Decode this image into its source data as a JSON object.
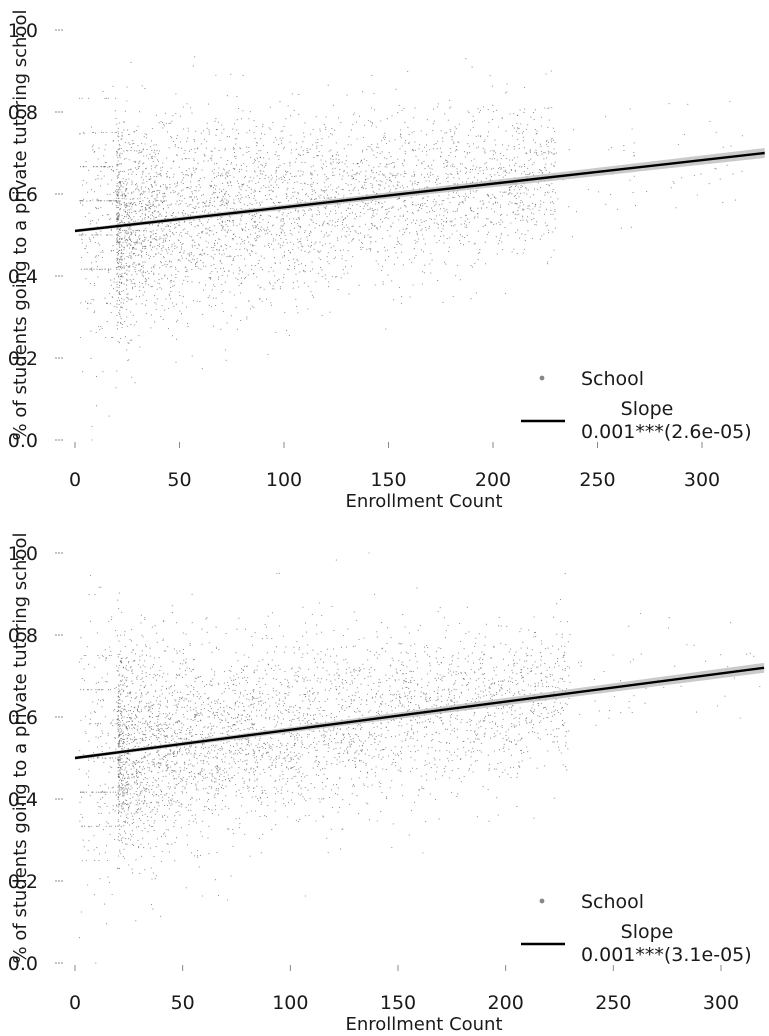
{
  "chart_data": [
    {
      "type": "scatter",
      "xlabel": "Enrollment Count",
      "ylabel": "% of students going to a private tutoring school",
      "xlim": [
        0,
        330
      ],
      "ylim": [
        0,
        1.0
      ],
      "x_ticks": [
        "0",
        "50",
        "100",
        "150",
        "200",
        "250",
        "300"
      ],
      "y_ticks": [
        "0.0",
        "0.2",
        "0.4",
        "0.6",
        "0.8",
        "1.0"
      ],
      "grid": false,
      "legend_position": "bottom-right",
      "legend": {
        "points_label": "School",
        "line_label": "Slope",
        "line_value": "0.001***(2.6e-05)"
      },
      "series": [
        {
          "name": "School",
          "kind": "points",
          "color": "#555555",
          "n_points_approx": 9000
        },
        {
          "name": "Slope",
          "kind": "fitted-line",
          "color": "#000000",
          "ci_color": "#bdbdbd",
          "line": {
            "x": [
              0,
              330
            ],
            "y": [
              0.51,
              0.7
            ]
          }
        }
      ]
    },
    {
      "type": "scatter",
      "xlabel": "Enrollment Count",
      "ylabel": "% of students going to a private tutoring school",
      "xlim": [
        0,
        320
      ],
      "ylim": [
        0,
        1.0
      ],
      "x_ticks": [
        "0",
        "50",
        "100",
        "150",
        "200",
        "250",
        "300"
      ],
      "y_ticks": [
        "0.0",
        "0.2",
        "0.4",
        "0.6",
        "0.8",
        "1.0"
      ],
      "grid": false,
      "legend_position": "bottom-right",
      "legend": {
        "points_label": "School",
        "line_label": "Slope",
        "line_value": "0.001***(3.1e-05)"
      },
      "series": [
        {
          "name": "School",
          "kind": "points",
          "color": "#555555",
          "n_points_approx": 9000
        },
        {
          "name": "Slope",
          "kind": "fitted-line",
          "color": "#000000",
          "ci_color": "#bdbdbd",
          "line": {
            "x": [
              0,
              320
            ],
            "y": [
              0.5,
              0.72
            ]
          }
        }
      ]
    }
  ]
}
